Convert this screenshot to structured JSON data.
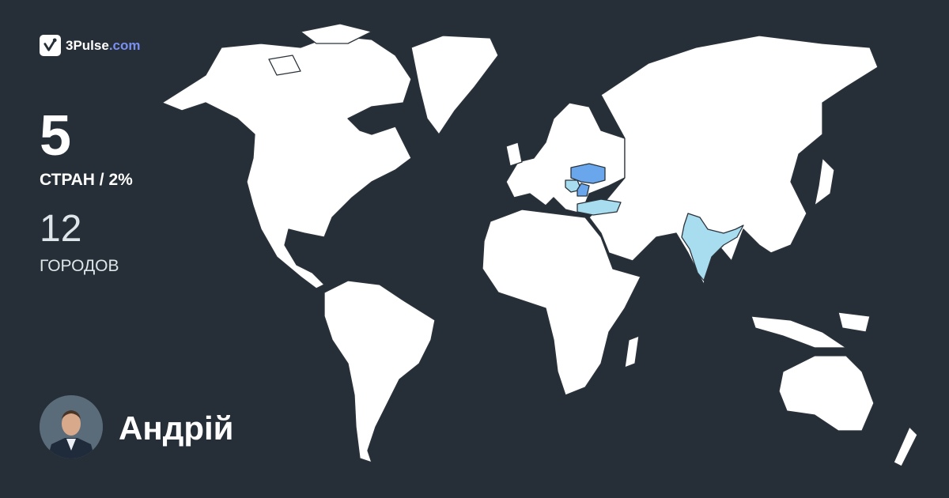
{
  "brand": {
    "name": "3Pulse",
    "domain": ".com",
    "icon": "check-pulse-icon"
  },
  "stats": {
    "countries_count": "5",
    "countries_label": "СТРАН / 2%",
    "cities_count": "12",
    "cities_label": "ГОРОДОВ"
  },
  "user": {
    "name": "Андрій",
    "avatar": "user-photo"
  },
  "map": {
    "visited_countries_count": 5,
    "colors": {
      "background": "#262f37",
      "land": "#ffffff",
      "border": "#2a333b",
      "visited_light": "#a8dcef",
      "visited_strong": "#6aa6ec"
    }
  }
}
